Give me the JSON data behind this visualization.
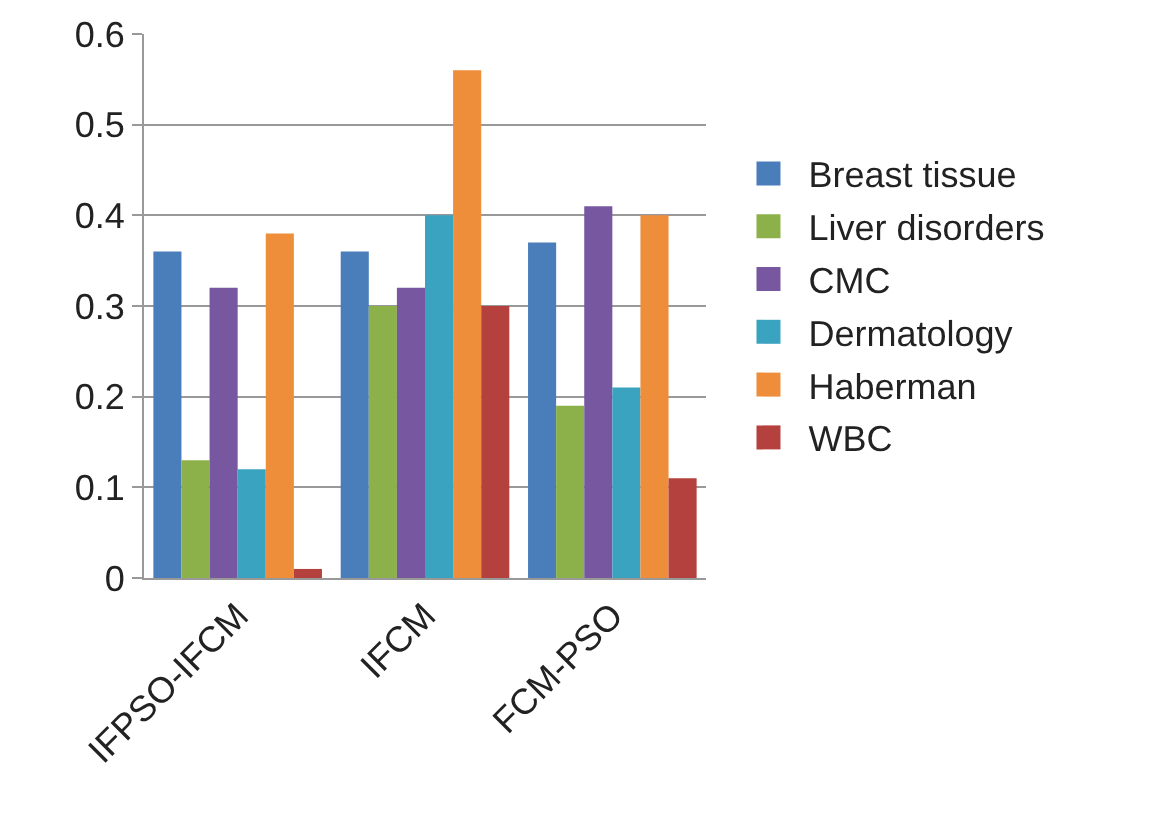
{
  "chart_data": {
    "type": "bar",
    "categories": [
      "IFPSO-IFCM",
      "IFCM",
      "FCM-PSO"
    ],
    "series": [
      {
        "name": "Breast tissue",
        "color": "#4a7ebb",
        "values": [
          0.36,
          0.36,
          0.37
        ]
      },
      {
        "name": "Liver disorders",
        "color": "#8cb04a",
        "values": [
          0.13,
          0.3,
          0.19
        ]
      },
      {
        "name": "CMC",
        "color": "#7657a0",
        "values": [
          0.32,
          0.32,
          0.41
        ]
      },
      {
        "name": "Dermatology",
        "color": "#3aa3bf",
        "values": [
          0.12,
          0.4,
          0.21
        ]
      },
      {
        "name": "Haberman",
        "color": "#ee8d3a",
        "values": [
          0.38,
          0.56,
          0.4
        ]
      },
      {
        "name": "WBC",
        "color": "#b5413e",
        "values": [
          0.01,
          0.3,
          0.11
        ]
      }
    ],
    "ylim": [
      0,
      0.6
    ],
    "yticks": [
      0,
      0.1,
      0.2,
      0.3,
      0.4,
      0.5,
      0.6
    ],
    "grid": true,
    "legend": "right"
  }
}
